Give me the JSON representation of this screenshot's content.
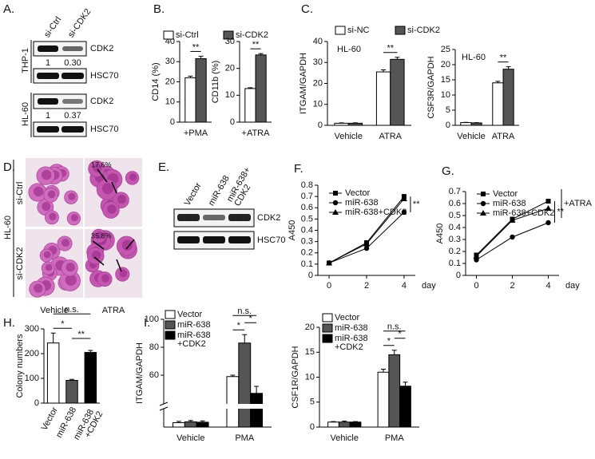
{
  "panel_labels": [
    "A.",
    "B.",
    "C.",
    "D.",
    "E.",
    "F.",
    "G.",
    "H.",
    "I."
  ],
  "blot_a": {
    "columns": [
      "si-Ctrl",
      "si-CDK2"
    ],
    "cell_lines": [
      "THP-1",
      "HL-60"
    ],
    "rows": [
      {
        "protein": "CDK2",
        "ratios": [
          "1",
          "0.30"
        ]
      },
      {
        "protein": "HSC70"
      },
      {
        "protein": "CDK2",
        "ratios": [
          "1",
          "0.37"
        ]
      },
      {
        "protein": "HSC70"
      }
    ]
  },
  "micrograph_d": {
    "cell_line": "HL-60",
    "rows": [
      "si-Ctrl",
      "si-CDK2"
    ],
    "columns": [
      "Vehicle",
      "ATRA"
    ],
    "percentages": [
      "17.6%",
      "35.8%"
    ]
  },
  "blot_e": {
    "columns": [
      "Vector",
      "miR-638",
      "miR-638+ CDK2"
    ],
    "rows": [
      "CDK2",
      "HSC70"
    ]
  },
  "chart_data": [
    {
      "type": "grouped_bar",
      "ylabel": "CD14 (%)",
      "categories": [
        "+PMA"
      ],
      "series": [
        {
          "name": "si-Ctrl",
          "color": "#ffffff",
          "values": [
            22
          ],
          "errors": [
            0.8
          ]
        },
        {
          "name": "si-CDK2",
          "color": "#555555",
          "values": [
            31.5
          ],
          "errors": [
            1.2
          ]
        }
      ],
      "ylim": [
        0,
        40
      ],
      "yticks": [
        0,
        10,
        20,
        30,
        40
      ],
      "significance": [
        {
          "text": "**",
          "category": 0,
          "between": [
            0,
            1
          ]
        }
      ]
    },
    {
      "type": "grouped_bar",
      "ylabel": "CD11b (%)",
      "categories": [
        "+ATRA"
      ],
      "series": [
        {
          "color": "#ffffff",
          "values": [
            12.5
          ],
          "errors": [
            0.3
          ]
        },
        {
          "color": "#555555",
          "values": [
            25
          ],
          "errors": [
            0.5
          ]
        }
      ],
      "ylim": [
        0,
        30
      ],
      "yticks": [
        0,
        10,
        20,
        30
      ],
      "significance": [
        {
          "text": "**",
          "category": 0,
          "between": [
            0,
            1
          ]
        }
      ]
    },
    {
      "type": "grouped_bar",
      "ylabel": "ITGAM/GAPDH",
      "annotation": "HL-60",
      "categories": [
        "Vehicle",
        "ATRA"
      ],
      "series": [
        {
          "name": "si-NC",
          "color": "#ffffff",
          "values": [
            1,
            25.5
          ],
          "errors": [
            0.2,
            1
          ]
        },
        {
          "name": "si-CDK2",
          "color": "#555555",
          "values": [
            1,
            31.5
          ],
          "errors": [
            0.2,
            1
          ]
        }
      ],
      "ylim": [
        0,
        40
      ],
      "yticks": [
        0,
        10,
        20,
        30,
        40
      ],
      "significance": [
        {
          "text": "**",
          "category": 1,
          "between": [
            0,
            1
          ]
        }
      ]
    },
    {
      "type": "grouped_bar",
      "ylabel": "CSF3R/GAPDH",
      "annotation": "HL-60",
      "categories": [
        "Vehicle",
        "ATRA"
      ],
      "series": [
        {
          "color": "#ffffff",
          "values": [
            0.9,
            14
          ],
          "errors": [
            0.1,
            0.5
          ]
        },
        {
          "color": "#555555",
          "values": [
            0.8,
            18.5
          ],
          "errors": [
            0.1,
            0.8
          ]
        }
      ],
      "ylim": [
        0,
        25
      ],
      "yticks": [
        0,
        5,
        10,
        15,
        20,
        25
      ],
      "significance": [
        {
          "text": "**",
          "category": 1,
          "between": [
            0,
            1
          ]
        }
      ]
    },
    {
      "type": "line",
      "ylabel": "A450",
      "xlabel": "day",
      "x": [
        0,
        2,
        4
      ],
      "xlim": [
        -0.6,
        4.6
      ],
      "xticks": [
        0,
        2,
        4
      ],
      "series": [
        {
          "name": "Vector",
          "color": "#000000",
          "marker": "square",
          "values": [
            0.11,
            0.29,
            0.7
          ]
        },
        {
          "name": "miR-638",
          "color": "#000000",
          "marker": "circle",
          "values": [
            0.11,
            0.24,
            0.56
          ]
        },
        {
          "name": "miR-638+CDK2",
          "color": "#000000",
          "marker": "triangle",
          "values": [
            0.11,
            0.28,
            0.68
          ]
        }
      ],
      "ylim": [
        0,
        0.8
      ],
      "yticks": [
        0,
        0.1,
        0.2,
        0.3,
        0.4,
        0.5,
        0.6,
        0.7,
        0.8
      ],
      "significance": [
        {
          "text": "**",
          "between": [
            0,
            1
          ]
        }
      ]
    },
    {
      "type": "line",
      "ylabel": "A450",
      "xlabel": "day",
      "legend_note": "+ATRA",
      "x": [
        0,
        2,
        4
      ],
      "xlim": [
        -0.6,
        4.6
      ],
      "xticks": [
        0,
        2,
        4
      ],
      "series": [
        {
          "name": "Vector",
          "color": "#000000",
          "marker": "square",
          "values": [
            0.17,
            0.47,
            0.62
          ]
        },
        {
          "name": "miR-638",
          "color": "#000000",
          "marker": "circle",
          "values": [
            0.13,
            0.32,
            0.44
          ]
        },
        {
          "name": "miR-638+CDK2",
          "color": "#000000",
          "marker": "triangle",
          "values": [
            0.16,
            0.46,
            0.56
          ]
        }
      ],
      "ylim": [
        0,
        0.7
      ],
      "yticks": [
        0,
        0.1,
        0.2,
        0.3,
        0.4,
        0.5,
        0.6,
        0.7
      ],
      "significance": [
        {
          "text": "**",
          "between": [
            0,
            1
          ]
        }
      ]
    },
    {
      "type": "bar",
      "ylabel": "Colony numbers",
      "categories": [
        "Vector",
        "miR-638",
        "miR-638 +CDK2"
      ],
      "values": [
        243,
        92,
        205
      ],
      "errors": [
        40,
        4,
        8
      ],
      "colors": [
        "#ffffff",
        "#555555",
        "#000000"
      ],
      "ylim": [
        0,
        300
      ],
      "yticks": [
        0,
        100,
        200,
        300
      ],
      "significance": [
        {
          "text": "*",
          "between": [
            0,
            1
          ]
        },
        {
          "text": "**",
          "between": [
            1,
            2
          ]
        },
        {
          "text": "n.s.",
          "between": [
            0,
            2
          ]
        }
      ]
    },
    {
      "type": "grouped_bar",
      "ylabel": "ITGAM/GAPDH",
      "categories": [
        "Vehicle",
        "PMA"
      ],
      "series": [
        {
          "name": "Vector",
          "color": "#ffffff",
          "values": [
            1,
            59
          ],
          "errors": [
            0.3,
            1
          ]
        },
        {
          "name": "miR-638",
          "color": "#555555",
          "values": [
            1.2,
            83
          ],
          "errors": [
            0.3,
            6
          ]
        },
        {
          "name": "miR-638 +CDK2",
          "color": "#000000",
          "values": [
            1.1,
            47
          ],
          "errors": [
            0.3,
            5
          ]
        }
      ],
      "ylim": [
        0,
        100
      ],
      "yticks": [
        60,
        80,
        100
      ],
      "ybreak": [
        4,
        40
      ],
      "significance": [
        {
          "text": "*",
          "category": 1,
          "between": [
            0,
            1
          ]
        },
        {
          "text": "*",
          "category": 1,
          "between": [
            1,
            2
          ]
        },
        {
          "text": "n.s.",
          "category": 1,
          "between": [
            0,
            2
          ]
        }
      ]
    },
    {
      "type": "grouped_bar",
      "ylabel": "CSF1R/GAPDH",
      "categories": [
        "Vehicle",
        "PMA"
      ],
      "series": [
        {
          "name": "Vector",
          "color": "#ffffff",
          "values": [
            1,
            11
          ],
          "errors": [
            0.1,
            0.6
          ]
        },
        {
          "name": "miR-638",
          "color": "#555555",
          "values": [
            1,
            14.5
          ],
          "errors": [
            0.2,
            0.9
          ]
        },
        {
          "name": "miR-638 +CDK2",
          "color": "#000000",
          "values": [
            1,
            8.2
          ],
          "errors": [
            0.1,
            0.8
          ]
        }
      ],
      "ylim": [
        0,
        20
      ],
      "yticks": [
        0,
        5,
        10,
        15,
        20
      ],
      "significance": [
        {
          "text": "*",
          "category": 1,
          "between": [
            0,
            1
          ]
        },
        {
          "text": "*",
          "category": 1,
          "between": [
            1,
            2
          ]
        },
        {
          "text": "n.s.",
          "category": 1,
          "between": [
            0,
            2
          ]
        }
      ]
    }
  ]
}
